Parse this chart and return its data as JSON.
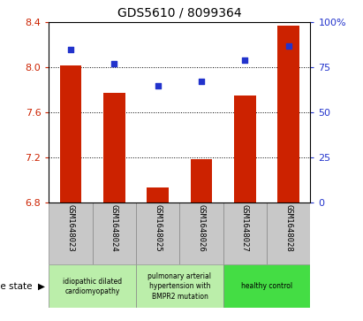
{
  "title": "GDS5610 / 8099364",
  "samples": [
    "GSM1648023",
    "GSM1648024",
    "GSM1648025",
    "GSM1648026",
    "GSM1648027",
    "GSM1648028"
  ],
  "bar_values": [
    8.02,
    7.77,
    6.93,
    7.18,
    7.75,
    8.37
  ],
  "bar_bottom": 6.8,
  "scatter_values": [
    85,
    77,
    65,
    67,
    79,
    87
  ],
  "ylim_left": [
    6.8,
    8.4
  ],
  "ylim_right": [
    0,
    100
  ],
  "yticks_left": [
    6.8,
    7.2,
    7.6,
    8.0,
    8.4
  ],
  "yticks_right": [
    0,
    25,
    50,
    75,
    100
  ],
  "ytick_labels_right": [
    "0",
    "25",
    "50",
    "75",
    "100%"
  ],
  "bar_color": "#cc2200",
  "scatter_color": "#2233cc",
  "bg_color": "#ffffff",
  "cell_bg_color": "#c8c8c8",
  "group_colors": [
    "#bbeeaa",
    "#bbeeaa",
    "#44dd44"
  ],
  "group_ranges": [
    [
      0,
      1
    ],
    [
      2,
      3
    ],
    [
      4,
      5
    ]
  ],
  "group_labels": [
    "idiopathic dilated\ncardiomyopathy",
    "pulmonary arterial\nhypertension with\nBMPR2 mutation",
    "healthy control"
  ],
  "title_fontsize": 10,
  "tick_fontsize": 8,
  "label_fontsize": 6.5,
  "disease_fontsize": 7.5,
  "legend_fontsize": 7.5
}
